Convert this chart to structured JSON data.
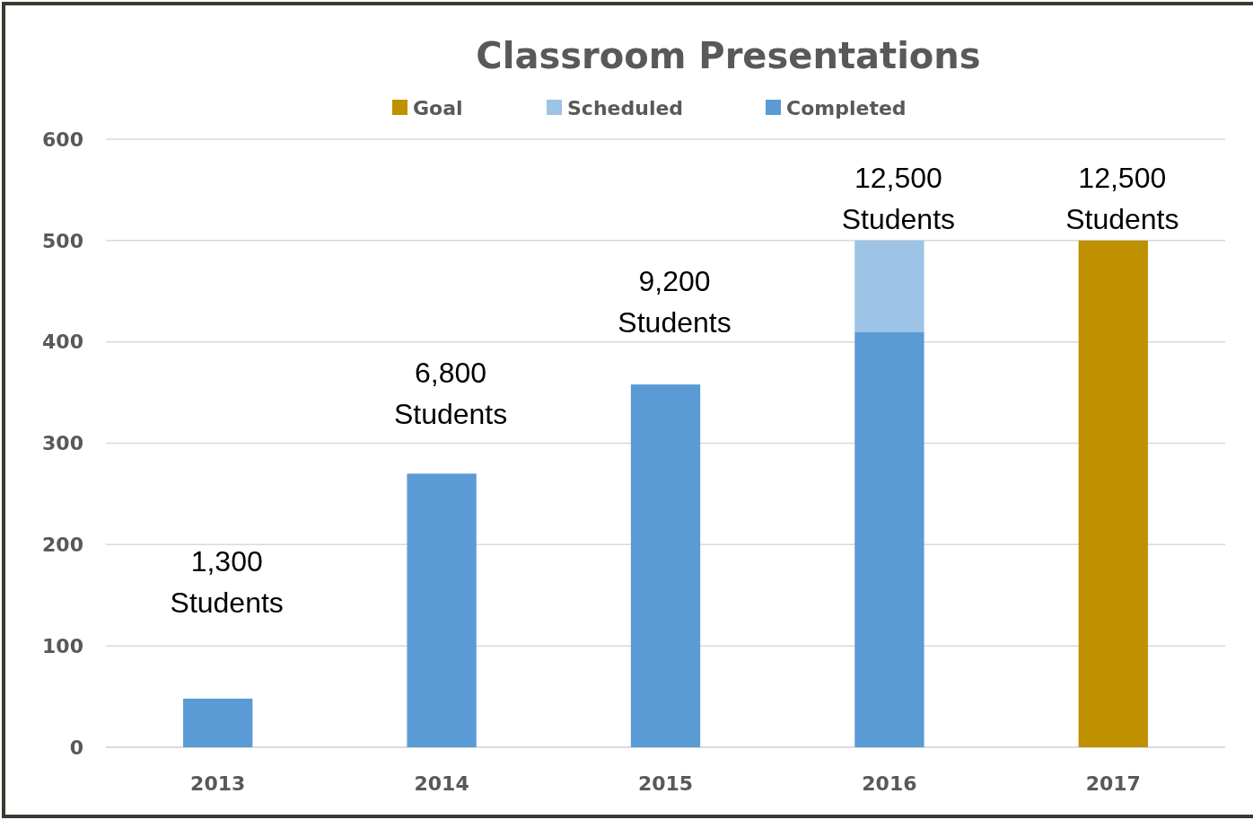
{
  "chart_data": {
    "type": "bar",
    "title": "Classroom Presentations",
    "categories": [
      "2013",
      "2014",
      "2015",
      "2016",
      "2017"
    ],
    "stacked": true,
    "series": [
      {
        "name": "Completed",
        "color": "#5b9bd5",
        "values": [
          48,
          270,
          358,
          410,
          null
        ]
      },
      {
        "name": "Scheduled",
        "color": "#9dc3e6",
        "values": [
          null,
          null,
          null,
          90,
          null
        ]
      },
      {
        "name": "Goal",
        "color": "#bf9000",
        "values": [
          null,
          null,
          null,
          null,
          500
        ]
      }
    ],
    "ylim": [
      0,
      600
    ],
    "yticks": [
      0,
      100,
      200,
      300,
      400,
      500,
      600
    ],
    "grid": "y",
    "legend": "top",
    "annotations": [
      "1,300\nStudents",
      "6,800\nStudents",
      "9,200\nStudents",
      "12,500\nStudents",
      "12,500\nStudents"
    ]
  }
}
